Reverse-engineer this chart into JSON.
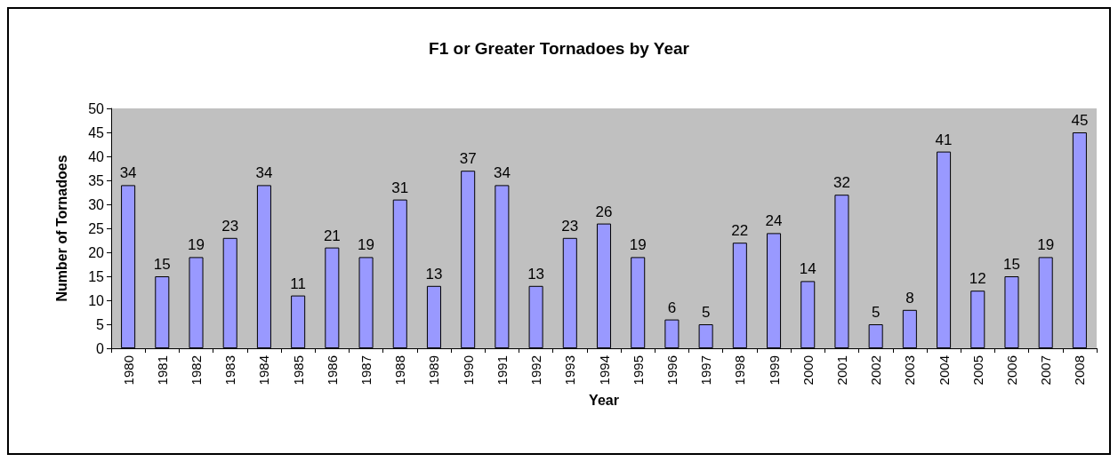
{
  "chart_data": {
    "type": "bar",
    "title": "F1 or Greater Tornadoes by Year",
    "xlabel": "Year",
    "ylabel": "Number of Tornadoes",
    "categories": [
      "1980",
      "1981",
      "1982",
      "1983",
      "1984",
      "1985",
      "1986",
      "1987",
      "1988",
      "1989",
      "1990",
      "1991",
      "1992",
      "1993",
      "1994",
      "1995",
      "1996",
      "1997",
      "1998",
      "1999",
      "2000",
      "2001",
      "2002",
      "2003",
      "2004",
      "2005",
      "2006",
      "2007",
      "2008"
    ],
    "values": [
      34,
      15,
      19,
      23,
      34,
      11,
      21,
      19,
      31,
      13,
      37,
      34,
      13,
      23,
      26,
      19,
      6,
      5,
      22,
      24,
      14,
      32,
      5,
      8,
      41,
      12,
      15,
      19,
      45
    ],
    "color": "#9999ff",
    "ylim": [
      0,
      50
    ],
    "yticks": [
      0,
      5,
      10,
      15,
      20,
      25,
      30,
      35,
      40,
      45,
      50
    ],
    "grid": false,
    "data_labels": true
  }
}
